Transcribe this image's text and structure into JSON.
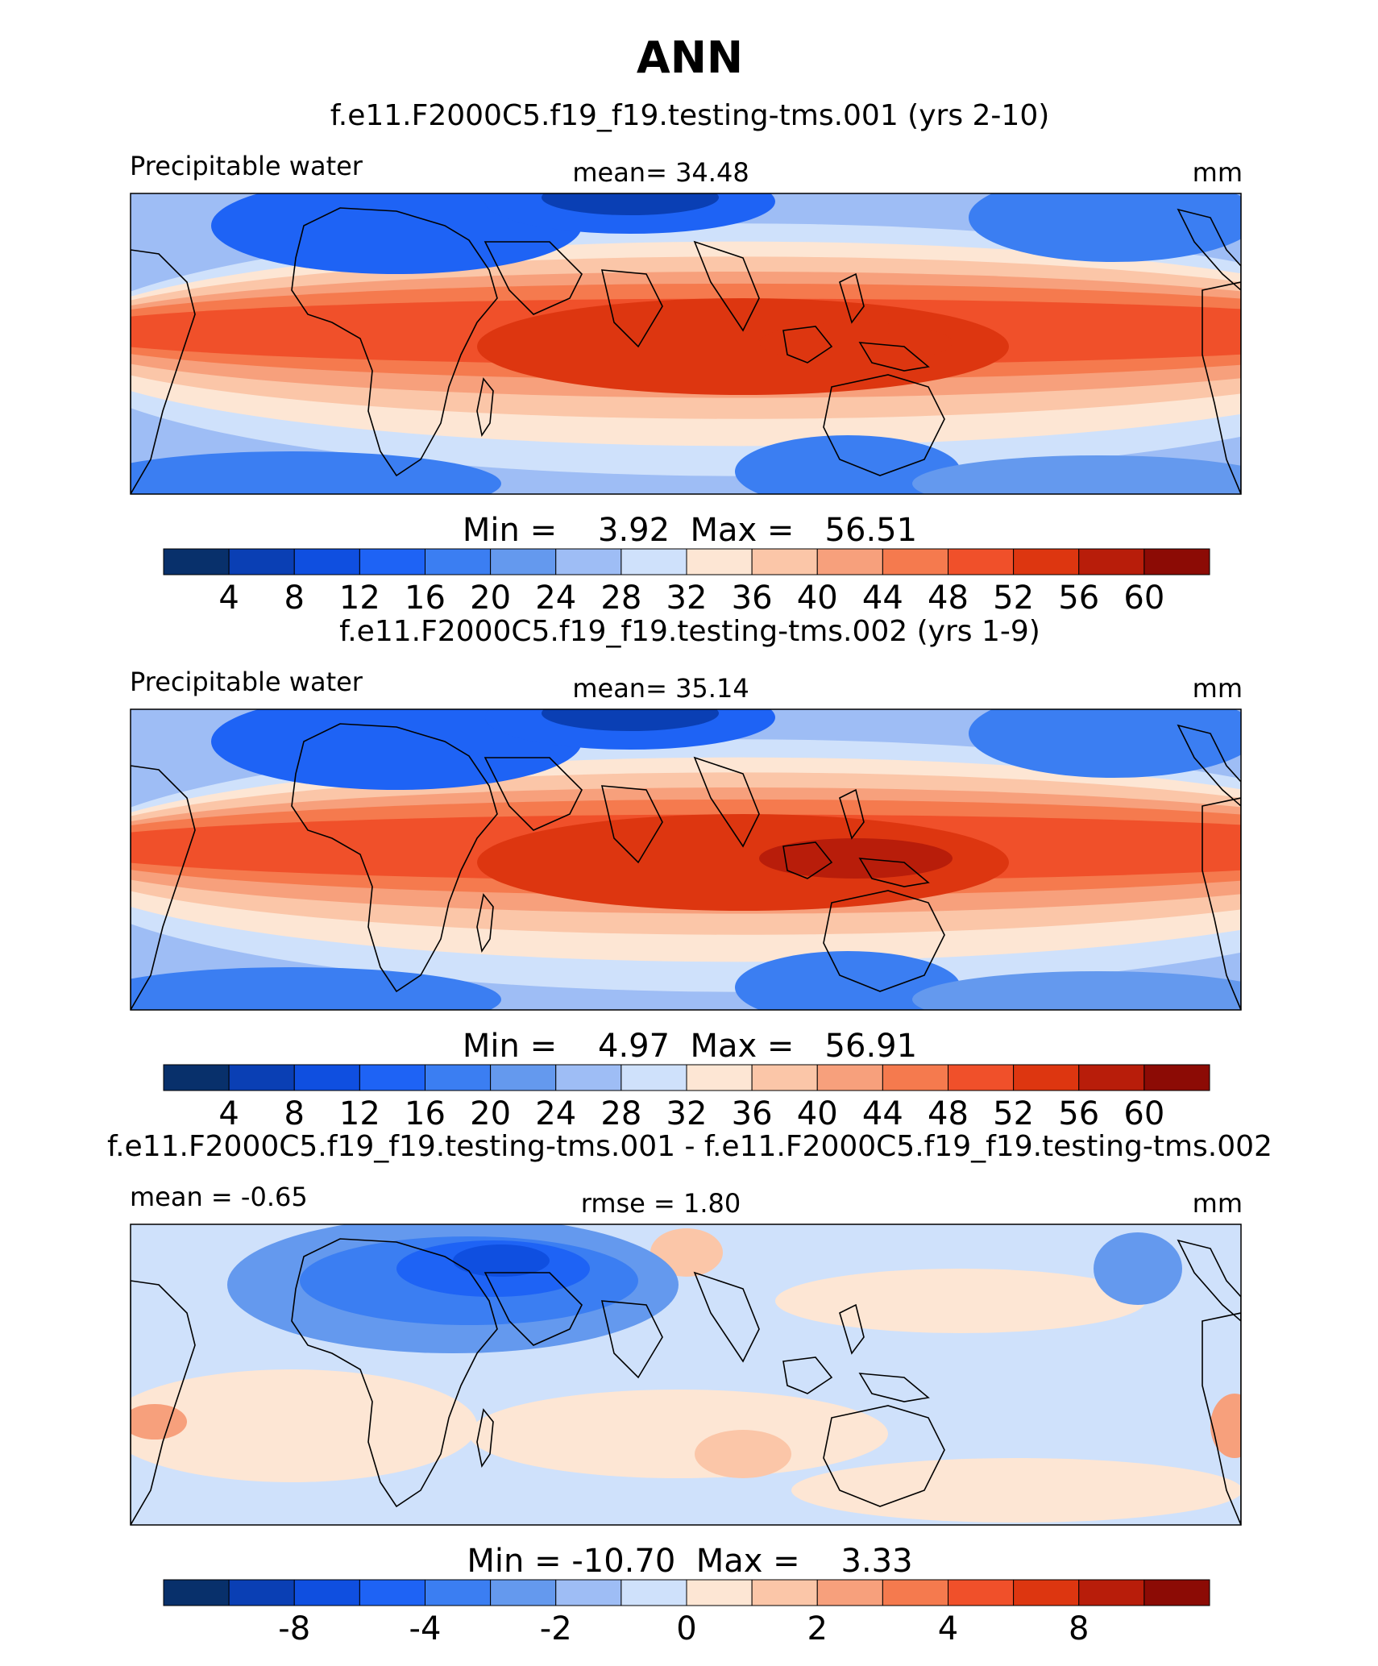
{
  "figure": {
    "title": "ANN"
  },
  "colors": {
    "palette": [
      "#08306b",
      "#0a3fb4",
      "#0f4fe0",
      "#1e63f5",
      "#3b7ef2",
      "#6499ee",
      "#9ebdf5",
      "#cfe1fb",
      "#fde6d4",
      "#fbc6a8",
      "#f7a07c",
      "#f57a4e",
      "#f0502a",
      "#dd3610",
      "#b81d0a",
      "#8c0b05"
    ],
    "frame": "#000000"
  },
  "chart_data": [
    {
      "type": "heatmap",
      "subtitle": "f.e11.F2000C5.f19_f19.testing-tms.001 (yrs 2-10)",
      "left_label": "Precipitable water",
      "center_label": "mean=  34.48",
      "right_label": "mm",
      "stats": "Min =    3.92  Max =   56.51",
      "colorbar_ticks": [
        "4",
        "8",
        "12",
        "16",
        "20",
        "24",
        "28",
        "32",
        "36",
        "40",
        "44",
        "48",
        "52",
        "56",
        "60"
      ],
      "levels": [
        4,
        8,
        12,
        16,
        20,
        24,
        28,
        32,
        36,
        40,
        44,
        48,
        52,
        56,
        60
      ],
      "min": 3.92,
      "max": 56.51,
      "mean": 34.48
    },
    {
      "type": "heatmap",
      "subtitle": "f.e11.F2000C5.f19_f19.testing-tms.002 (yrs 1-9)",
      "left_label": "Precipitable water",
      "center_label": "mean=  35.14",
      "right_label": "mm",
      "stats": "Min =    4.97  Max =   56.91",
      "colorbar_ticks": [
        "4",
        "8",
        "12",
        "16",
        "20",
        "24",
        "28",
        "32",
        "36",
        "40",
        "44",
        "48",
        "52",
        "56",
        "60"
      ],
      "levels": [
        4,
        8,
        12,
        16,
        20,
        24,
        28,
        32,
        36,
        40,
        44,
        48,
        52,
        56,
        60
      ],
      "min": 4.97,
      "max": 56.91,
      "mean": 35.14
    },
    {
      "type": "heatmap",
      "subtitle": "f.e11.F2000C5.f19_f19.testing-tms.001 - f.e11.F2000C5.f19_f19.testing-tms.002",
      "left_label": "mean =  -0.65",
      "center_label": "rmse =    1.80",
      "right_label": "mm",
      "stats": "Min = -10.70  Max =    3.33",
      "colorbar_ticks": [
        "-8",
        "-4",
        "-2",
        "0",
        "2",
        "4",
        "8"
      ],
      "levels": [
        -10,
        -8,
        -6,
        -4,
        -3,
        -2,
        -1,
        0,
        1,
        2,
        3,
        4,
        6,
        8,
        10
      ],
      "min": -10.7,
      "max": 3.33,
      "mean": -0.65,
      "rmse": 1.8
    }
  ]
}
